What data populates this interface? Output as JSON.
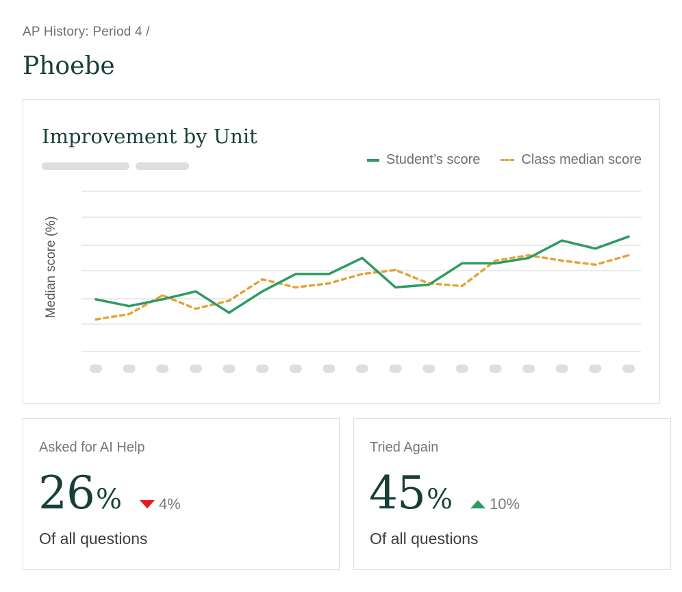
{
  "breadcrumb": "AP History: Period 4 /",
  "title": "Phoebe",
  "chart_card": {
    "title": "Improvement by Unit",
    "legend": {
      "student": "Student’s score",
      "class": "Class median score"
    },
    "colors": {
      "student": "#2e9a63",
      "class": "#e2a43a",
      "grid": "#e3e3e3",
      "placeholder": "#dedede"
    }
  },
  "chart_data": {
    "type": "line",
    "title": "Improvement by Unit",
    "xlabel": "",
    "ylabel": "Median score (%)",
    "x_tick_labels": "placeholder pills (unreadable)",
    "y_tick_labels": "none",
    "categories_count": 17,
    "grid": "horizontal",
    "legend_position": "top-right",
    "ylim": [
      0,
      6
    ],
    "series": [
      {
        "name": "Student’s score",
        "style": "solid",
        "values": [
          1.95,
          1.7,
          1.95,
          2.25,
          1.45,
          2.25,
          2.9,
          2.9,
          3.5,
          2.4,
          2.5,
          3.3,
          3.3,
          3.5,
          4.15,
          3.85,
          4.3
        ]
      },
      {
        "name": "Class median score",
        "style": "dashed",
        "values": [
          1.2,
          1.4,
          2.1,
          1.6,
          1.9,
          2.7,
          2.4,
          2.55,
          2.9,
          3.05,
          2.55,
          2.45,
          3.4,
          3.6,
          3.4,
          3.25,
          3.6
        ]
      }
    ]
  },
  "stats": [
    {
      "label": "Asked for AI Help",
      "value": "26",
      "unit": "%",
      "delta": "4%",
      "direction": "down",
      "caption": "Of all questions"
    },
    {
      "label": "Tried Again",
      "value": "45",
      "unit": "%",
      "delta": "10%",
      "direction": "up",
      "caption": "Of all questions"
    }
  ]
}
